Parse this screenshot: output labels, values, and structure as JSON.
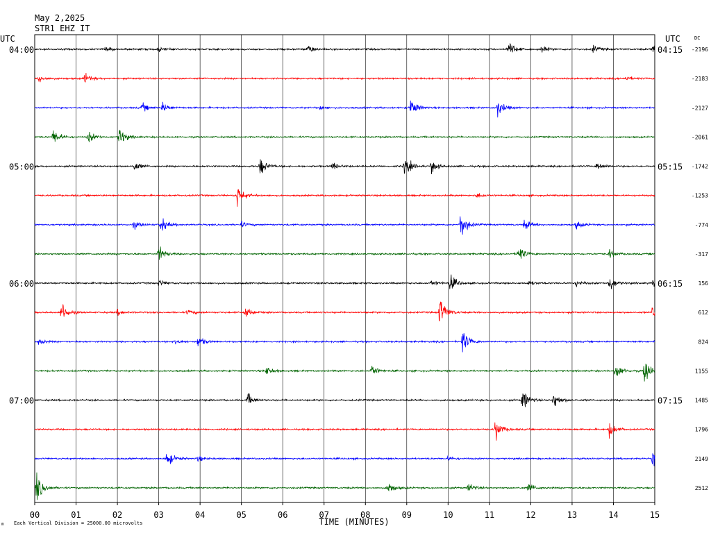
{
  "header": {
    "date": "May 2,2025",
    "station": "STR1 EHZ IT"
  },
  "footer": {
    "scale_note": "Each Vertical Division = 25000.00 microvolts",
    "corner_mark": "m"
  },
  "chart_data": {
    "type": "line",
    "title": "",
    "xlabel": "TIME (MINUTES)",
    "ylabel": "",
    "xlim": [
      0,
      15
    ],
    "x_ticks": [
      "00",
      "01",
      "02",
      "03",
      "04",
      "05",
      "06",
      "07",
      "08",
      "09",
      "10",
      "11",
      "12",
      "13",
      "14",
      "15"
    ],
    "left_axis_label": "UTC",
    "right_axis_label": "UTC",
    "dc_label": "DC",
    "grid": true,
    "left_hour_labels": [
      {
        "row": 0,
        "label": "04:00"
      },
      {
        "row": 4,
        "label": "05:00"
      },
      {
        "row": 8,
        "label": "06:00"
      },
      {
        "row": 12,
        "label": "07:00"
      }
    ],
    "right_hour_labels": [
      {
        "row": 0,
        "label": "04:15"
      },
      {
        "row": 4,
        "label": "05:15"
      },
      {
        "row": 8,
        "label": "06:15"
      },
      {
        "row": 12,
        "label": "07:15"
      }
    ],
    "dc_offsets": [
      "-2196",
      "-2183",
      "-2127",
      "-2061",
      "-1742",
      "-1253",
      "-774",
      "-317",
      "156",
      "612",
      "824",
      "1155",
      "1485",
      "1796",
      "2149",
      "2512"
    ],
    "trace_colors": [
      "#000000",
      "#ff0000",
      "#0000ff",
      "#006400"
    ],
    "traces": [
      {
        "row": 0,
        "color": "#000000",
        "events": [
          [
            1.7,
            4
          ],
          [
            3.0,
            4
          ],
          [
            6.6,
            8
          ],
          [
            11.45,
            16
          ],
          [
            12.25,
            6
          ],
          [
            13.5,
            7
          ],
          [
            14.95,
            8
          ]
        ]
      },
      {
        "row": 1,
        "color": "#ff0000",
        "events": [
          [
            0.1,
            7
          ],
          [
            1.2,
            10
          ],
          [
            14.3,
            5
          ]
        ]
      },
      {
        "row": 2,
        "color": "#0000ff",
        "events": [
          [
            2.6,
            8
          ],
          [
            3.1,
            10
          ],
          [
            6.9,
            3
          ],
          [
            9.1,
            18
          ],
          [
            11.2,
            16
          ]
        ]
      },
      {
        "row": 3,
        "color": "#006400",
        "events": [
          [
            0.45,
            16
          ],
          [
            1.3,
            11
          ],
          [
            2.05,
            18
          ]
        ]
      },
      {
        "row": 4,
        "color": "#000000",
        "events": [
          [
            2.4,
            9
          ],
          [
            5.45,
            18
          ],
          [
            7.2,
            7
          ],
          [
            8.95,
            20
          ],
          [
            9.6,
            12
          ],
          [
            13.6,
            8
          ]
        ]
      },
      {
        "row": 5,
        "color": "#ff0000",
        "events": [
          [
            4.9,
            20
          ],
          [
            10.7,
            5
          ]
        ]
      },
      {
        "row": 6,
        "color": "#0000ff",
        "events": [
          [
            2.4,
            7
          ],
          [
            3.05,
            15
          ],
          [
            5.0,
            5
          ],
          [
            10.3,
            30
          ],
          [
            11.85,
            10
          ],
          [
            13.1,
            8
          ]
        ]
      },
      {
        "row": 7,
        "color": "#006400",
        "events": [
          [
            3.0,
            16
          ],
          [
            11.7,
            16
          ],
          [
            13.9,
            8
          ]
        ]
      },
      {
        "row": 8,
        "color": "#000000",
        "events": [
          [
            3.0,
            6
          ],
          [
            9.6,
            5
          ],
          [
            10.05,
            16
          ],
          [
            11.95,
            4
          ],
          [
            13.1,
            5
          ],
          [
            13.9,
            16
          ],
          [
            14.95,
            10
          ]
        ]
      },
      {
        "row": 9,
        "color": "#ff0000",
        "events": [
          [
            0.65,
            20
          ],
          [
            2.0,
            5
          ],
          [
            3.7,
            5
          ],
          [
            5.1,
            10
          ],
          [
            9.8,
            30
          ],
          [
            14.95,
            15
          ]
        ]
      },
      {
        "row": 10,
        "color": "#0000ff",
        "events": [
          [
            0.1,
            6
          ],
          [
            3.4,
            6
          ],
          [
            3.95,
            11
          ],
          [
            10.35,
            22
          ]
        ]
      },
      {
        "row": 11,
        "color": "#006400",
        "events": [
          [
            5.6,
            8
          ],
          [
            8.15,
            12
          ],
          [
            14.05,
            16
          ],
          [
            14.75,
            26
          ]
        ]
      },
      {
        "row": 12,
        "color": "#000000",
        "events": [
          [
            5.15,
            12
          ],
          [
            11.8,
            20
          ],
          [
            12.55,
            16
          ]
        ]
      },
      {
        "row": 13,
        "color": "#ff0000",
        "events": [
          [
            11.15,
            20
          ],
          [
            13.9,
            14
          ]
        ]
      },
      {
        "row": 14,
        "color": "#0000ff",
        "events": [
          [
            3.2,
            16
          ],
          [
            3.95,
            5
          ],
          [
            10.0,
            4
          ],
          [
            14.95,
            14
          ]
        ]
      },
      {
        "row": 15,
        "color": "#006400",
        "events": [
          [
            0.05,
            26
          ],
          [
            8.55,
            12
          ],
          [
            10.5,
            9
          ],
          [
            11.95,
            9
          ]
        ]
      }
    ]
  }
}
